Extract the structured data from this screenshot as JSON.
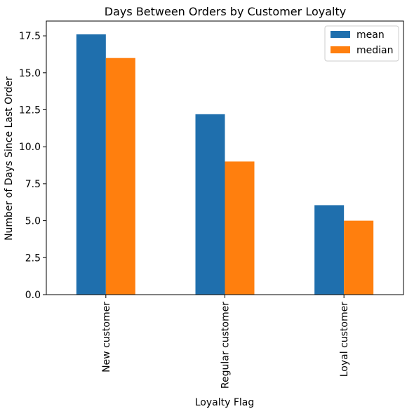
{
  "chart_data": {
    "type": "bar",
    "title": "Days Between Orders by Customer Loyalty",
    "xlabel": "Loyalty Flag",
    "ylabel": "Number of Days Since Last Order",
    "categories": [
      "New customer",
      "Regular customer",
      "Loyal customer"
    ],
    "series": [
      {
        "name": "mean",
        "values": [
          17.6,
          12.2,
          6.05
        ],
        "color": "#1f6fad"
      },
      {
        "name": "median",
        "values": [
          16.0,
          9.0,
          5.0
        ],
        "color": "#ff7f0e"
      }
    ],
    "ylim": [
      0,
      18.5
    ],
    "yticks": [
      0.0,
      2.5,
      5.0,
      7.5,
      10.0,
      12.5,
      15.0,
      17.5
    ],
    "ytick_labels": [
      "0.0",
      "2.5",
      "5.0",
      "7.5",
      "10.0",
      "12.5",
      "15.0",
      "17.5"
    ],
    "grid": false,
    "legend_position": "top-right"
  }
}
